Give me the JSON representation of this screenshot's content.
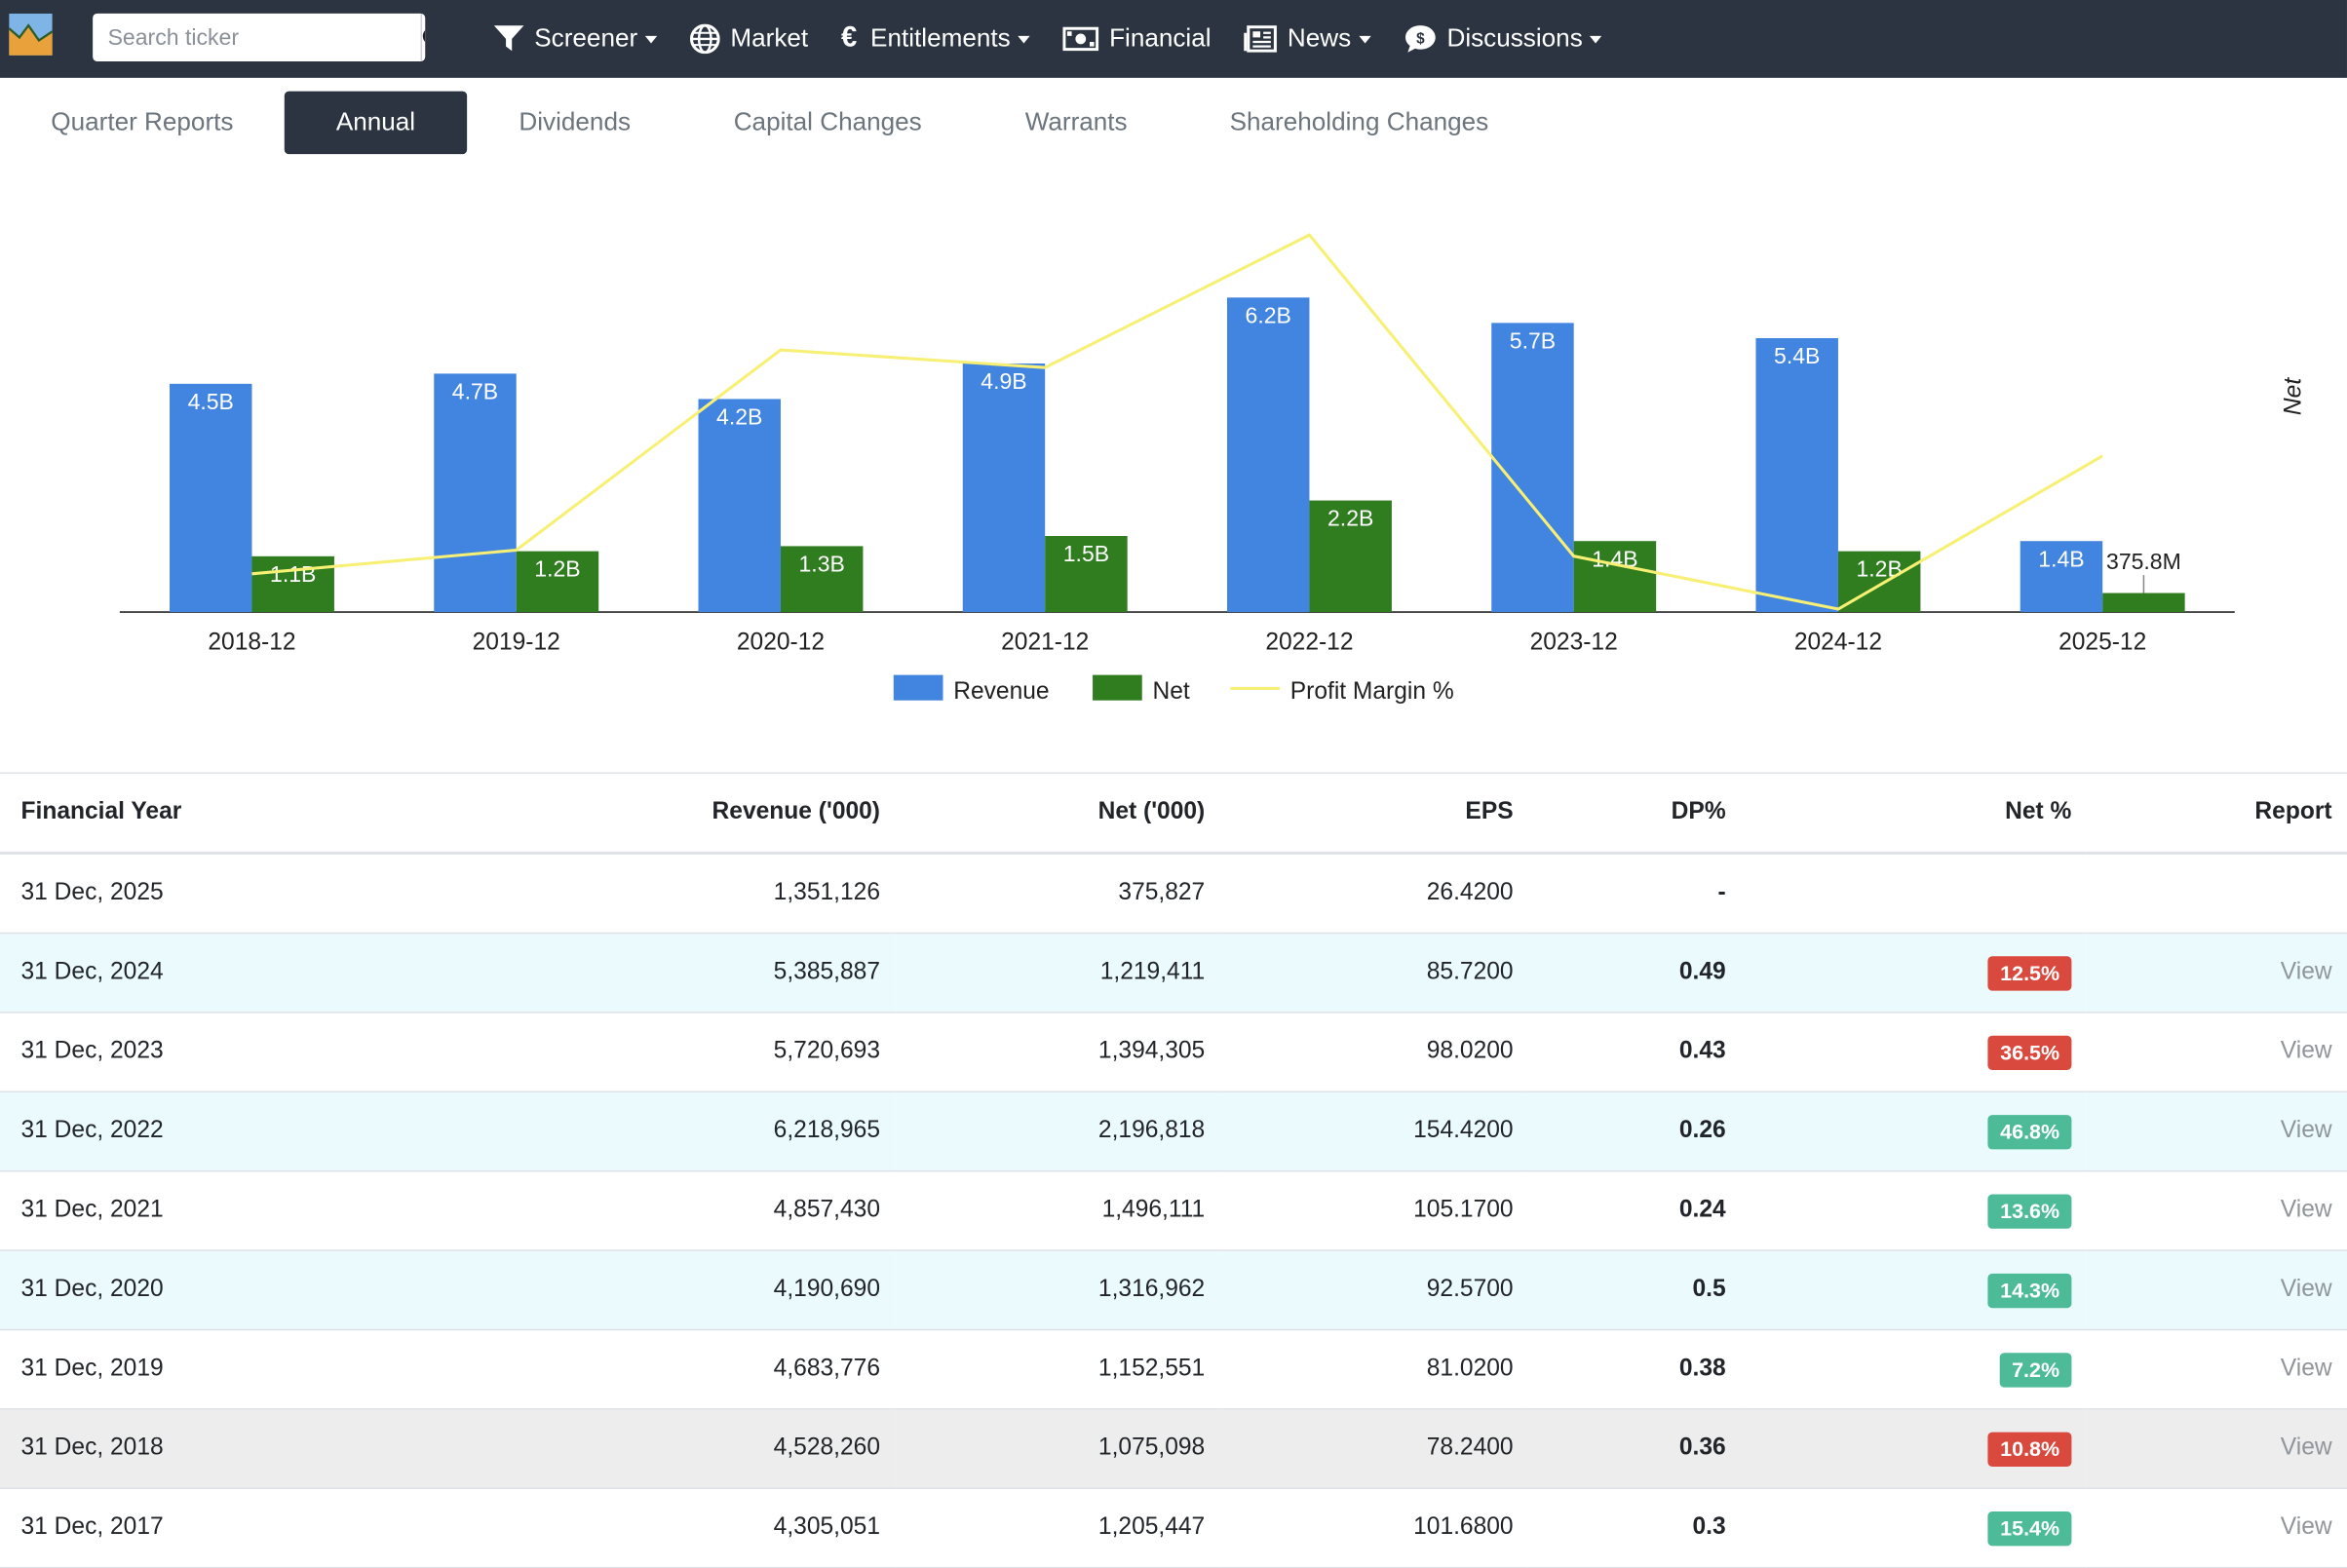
{
  "search": {
    "placeholder": "Search ticker"
  },
  "nav": {
    "screener": "Screener",
    "market": "Market",
    "entitlements": "Entitlements",
    "financial": "Financial",
    "news": "News",
    "discussions": "Discussions"
  },
  "tabs": [
    "Quarter Reports",
    "Annual",
    "Dividends",
    "Capital Changes",
    "Warrants",
    "Shareholding Changes"
  ],
  "active_tab": "Annual",
  "colors": {
    "navbar": "#2b3440",
    "revenue": "#4285e0",
    "net": "#2f7d1f",
    "margin": "#f7f074",
    "badge_red": "#d9493d",
    "badge_green": "#4dbb98"
  },
  "chart_data": {
    "type": "bar",
    "categories": [
      "2018-12",
      "2019-12",
      "2020-12",
      "2021-12",
      "2022-12",
      "2023-12",
      "2024-12",
      "2025-12"
    ],
    "series": [
      {
        "name": "Revenue",
        "values": [
          4.5,
          4.7,
          4.2,
          4.9,
          6.2,
          5.7,
          5.4,
          1.4
        ],
        "labels": [
          "4.5B",
          "4.7B",
          "4.2B",
          "4.9B",
          "6.2B",
          "5.7B",
          "5.4B",
          "1.4B"
        ]
      },
      {
        "name": "Net",
        "values": [
          1.1,
          1.2,
          1.3,
          1.5,
          2.2,
          1.4,
          1.2,
          0.3758
        ],
        "labels": [
          "1.1B",
          "1.2B",
          "1.3B",
          "1.5B",
          "2.2B",
          "1.4B",
          "1.2B",
          "375.8M"
        ]
      },
      {
        "name": "Profit Margin %",
        "type": "line",
        "values": [
          23.8,
          24.6,
          31.4,
          30.8,
          35.3,
          24.4,
          22.6,
          27.8
        ]
      }
    ],
    "y_unit": "B",
    "ylim": [
      0,
      7
    ],
    "y2label": "Net",
    "legend": "bottom-center",
    "grid": false
  },
  "table": {
    "columns": [
      "Financial Year",
      "Revenue ('000)",
      "Net ('000)",
      "EPS",
      "DP%",
      "Net %",
      "Report"
    ],
    "rows": [
      {
        "year": "31 Dec, 2025",
        "revenue": "1,351,126",
        "net": "375,827",
        "eps": "26.4200",
        "dp": "-",
        "net_pct": "",
        "badge": "",
        "report": "",
        "style": ""
      },
      {
        "year": "31 Dec, 2024",
        "revenue": "5,385,887",
        "net": "1,219,411",
        "eps": "85.7200",
        "dp": "0.49",
        "net_pct": "12.5%",
        "badge": "red",
        "report": "View",
        "style": "cyan"
      },
      {
        "year": "31 Dec, 2023",
        "revenue": "5,720,693",
        "net": "1,394,305",
        "eps": "98.0200",
        "dp": "0.43",
        "net_pct": "36.5%",
        "badge": "red",
        "report": "View",
        "style": ""
      },
      {
        "year": "31 Dec, 2022",
        "revenue": "6,218,965",
        "net": "2,196,818",
        "eps": "154.4200",
        "dp": "0.26",
        "net_pct": "46.8%",
        "badge": "green",
        "report": "View",
        "style": "cyan"
      },
      {
        "year": "31 Dec, 2021",
        "revenue": "4,857,430",
        "net": "1,496,111",
        "eps": "105.1700",
        "dp": "0.24",
        "net_pct": "13.6%",
        "badge": "green",
        "report": "View",
        "style": ""
      },
      {
        "year": "31 Dec, 2020",
        "revenue": "4,190,690",
        "net": "1,316,962",
        "eps": "92.5700",
        "dp": "0.5",
        "net_pct": "14.3%",
        "badge": "green",
        "report": "View",
        "style": "cyan"
      },
      {
        "year": "31 Dec, 2019",
        "revenue": "4,683,776",
        "net": "1,152,551",
        "eps": "81.0200",
        "dp": "0.38",
        "net_pct": "7.2%",
        "badge": "green",
        "report": "View",
        "style": ""
      },
      {
        "year": "31 Dec, 2018",
        "revenue": "4,528,260",
        "net": "1,075,098",
        "eps": "78.2400",
        "dp": "0.36",
        "net_pct": "10.8%",
        "badge": "red",
        "report": "View",
        "style": "grey"
      },
      {
        "year": "31 Dec, 2017",
        "revenue": "4,305,051",
        "net": "1,205,447",
        "eps": "101.6800",
        "dp": "0.3",
        "net_pct": "15.4%",
        "badge": "green",
        "report": "View",
        "style": ""
      }
    ]
  }
}
